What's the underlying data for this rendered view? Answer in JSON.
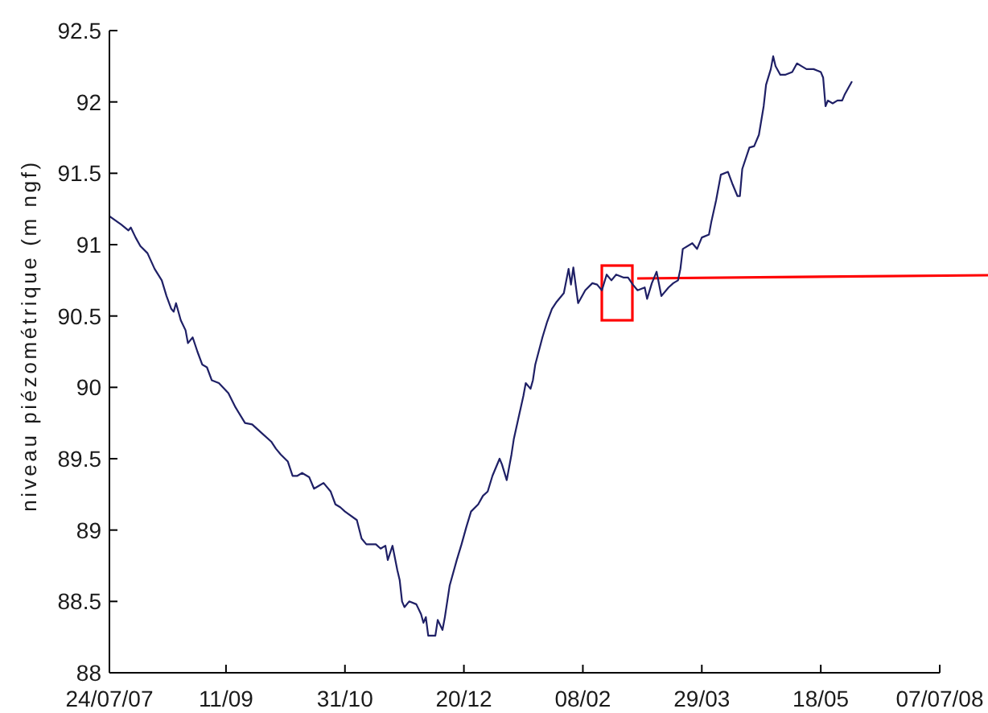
{
  "chart_data": {
    "type": "line",
    "ylabel": "niveau piézométrique (m ngf)",
    "x": [
      "2007-07-24",
      "2007-07-29",
      "2007-08-01",
      "2007-08-02",
      "2007-08-04",
      "2007-08-06",
      "2007-08-09",
      "2007-08-12",
      "2007-08-15",
      "2007-08-17",
      "2007-08-19",
      "2007-08-20",
      "2007-08-21",
      "2007-08-23",
      "2007-08-25",
      "2007-08-26",
      "2007-08-28",
      "2007-08-30",
      "2007-09-01",
      "2007-09-03",
      "2007-09-05",
      "2007-09-08",
      "2007-09-12",
      "2007-09-15",
      "2007-09-19",
      "2007-09-22",
      "2007-09-26",
      "2007-09-30",
      "2007-10-02",
      "2007-10-04",
      "2007-10-07",
      "2007-10-09",
      "2007-10-11",
      "2007-10-13",
      "2007-10-16",
      "2007-10-18",
      "2007-10-20",
      "2007-10-22",
      "2007-10-25",
      "2007-10-27",
      "2007-10-29",
      "2007-10-31",
      "2007-11-05",
      "2007-11-07",
      "2007-11-09",
      "2007-11-13",
      "2007-11-15",
      "2007-11-17",
      "2007-11-18",
      "2007-11-20",
      "2007-11-22",
      "2007-11-23",
      "2007-11-24",
      "2007-11-25",
      "2007-11-27",
      "2007-11-30",
      "2007-12-02",
      "2007-12-03",
      "2007-12-04",
      "2007-12-05",
      "2007-12-08",
      "2007-12-09",
      "2007-12-11",
      "2007-12-12",
      "2007-12-14",
      "2007-12-17",
      "2007-12-19",
      "2007-12-21",
      "2007-12-23",
      "2007-12-26",
      "2007-12-28",
      "2007-12-30",
      "2008-01-01",
      "2008-01-04",
      "2008-01-05",
      "2008-01-07",
      "2008-01-09",
      "2008-01-10",
      "2008-01-12",
      "2008-01-14",
      "2008-01-15",
      "2008-01-17",
      "2008-01-18",
      "2008-01-19",
      "2008-01-22",
      "2008-01-24",
      "2008-01-26",
      "2008-01-28",
      "2008-01-31",
      "2008-02-02",
      "2008-02-03",
      "2008-02-04",
      "2008-02-06",
      "2008-02-09",
      "2008-02-12",
      "2008-02-14",
      "2008-02-16",
      "2008-02-18",
      "2008-02-20",
      "2008-02-22",
      "2008-02-25",
      "2008-02-27",
      "2008-02-29",
      "2008-03-02",
      "2008-03-05",
      "2008-03-06",
      "2008-03-08",
      "2008-03-10",
      "2008-03-12",
      "2008-03-15",
      "2008-03-17",
      "2008-03-19",
      "2008-03-20",
      "2008-03-21",
      "2008-03-25",
      "2008-03-27",
      "2008-03-29",
      "2008-04-01",
      "2008-04-02",
      "2008-04-04",
      "2008-04-06",
      "2008-04-09",
      "2008-04-11",
      "2008-04-13",
      "2008-04-14",
      "2008-04-15",
      "2008-04-18",
      "2008-04-20",
      "2008-04-22",
      "2008-04-24",
      "2008-04-25",
      "2008-04-27",
      "2008-04-28",
      "2008-04-29",
      "2008-05-01",
      "2008-05-03",
      "2008-05-06",
      "2008-05-08",
      "2008-05-10",
      "2008-05-12",
      "2008-05-15",
      "2008-05-18",
      "2008-05-19",
      "2008-05-20",
      "2008-05-21",
      "2008-05-23",
      "2008-05-25",
      "2008-05-27",
      "2008-05-28",
      "2008-05-31"
    ],
    "series": [
      {
        "color": "#1f2066",
        "values": [
          91.2,
          91.14,
          91.1,
          91.12,
          91.05,
          90.99,
          90.94,
          90.83,
          90.75,
          90.64,
          90.55,
          90.53,
          90.59,
          90.47,
          90.4,
          90.31,
          90.35,
          90.25,
          90.16,
          90.14,
          90.05,
          90.03,
          89.96,
          89.86,
          89.75,
          89.74,
          89.68,
          89.62,
          89.57,
          89.53,
          89.48,
          89.38,
          89.38,
          89.4,
          89.37,
          89.29,
          89.31,
          89.33,
          89.27,
          89.18,
          89.16,
          89.13,
          89.07,
          88.94,
          88.9,
          88.9,
          88.87,
          88.89,
          88.79,
          88.89,
          88.72,
          88.65,
          88.5,
          88.46,
          88.5,
          88.48,
          88.41,
          88.35,
          88.39,
          88.26,
          88.26,
          88.37,
          88.3,
          88.39,
          88.61,
          88.79,
          88.9,
          89.02,
          89.13,
          89.18,
          89.24,
          89.27,
          89.38,
          89.5,
          89.46,
          89.35,
          89.53,
          89.64,
          89.79,
          89.94,
          90.03,
          89.99,
          90.05,
          90.16,
          90.35,
          90.46,
          90.55,
          90.6,
          90.66,
          90.83,
          90.72,
          90.84,
          90.59,
          90.68,
          90.73,
          90.72,
          90.68,
          90.79,
          90.75,
          90.79,
          90.77,
          90.77,
          90.72,
          90.68,
          90.7,
          90.62,
          90.73,
          90.81,
          90.64,
          90.7,
          90.73,
          90.75,
          90.83,
          90.97,
          91.01,
          90.97,
          91.05,
          91.07,
          91.16,
          91.31,
          91.49,
          91.51,
          91.42,
          91.34,
          91.34,
          91.53,
          91.68,
          91.69,
          91.77,
          91.97,
          92.12,
          92.23,
          92.32,
          92.25,
          92.19,
          92.19,
          92.21,
          92.27,
          92.25,
          92.23,
          92.23,
          92.21,
          92.17,
          91.97,
          92.01,
          91.99,
          92.01,
          92.01,
          92.05,
          92.14
        ]
      }
    ],
    "xlim": [
      "2007-07-24",
      "2008-07-07"
    ],
    "xticks": [
      {
        "value": "2007-07-24",
        "label": "24/07/07"
      },
      {
        "value": "2007-09-11",
        "label": "11/09"
      },
      {
        "value": "2007-10-31",
        "label": "31/10"
      },
      {
        "value": "2007-12-20",
        "label": "20/12"
      },
      {
        "value": "2008-02-08",
        "label": "08/02"
      },
      {
        "value": "2008-03-29",
        "label": "29/03"
      },
      {
        "value": "2008-05-18",
        "label": "18/05"
      },
      {
        "value": "2008-07-07",
        "label": "07/07/08"
      }
    ],
    "ylim": [
      88,
      92.5
    ],
    "yticks": [
      88,
      88.5,
      89,
      89.5,
      90,
      90.5,
      91,
      91.5,
      92,
      92.5
    ],
    "marker": "none",
    "line_style": "solid"
  }
}
